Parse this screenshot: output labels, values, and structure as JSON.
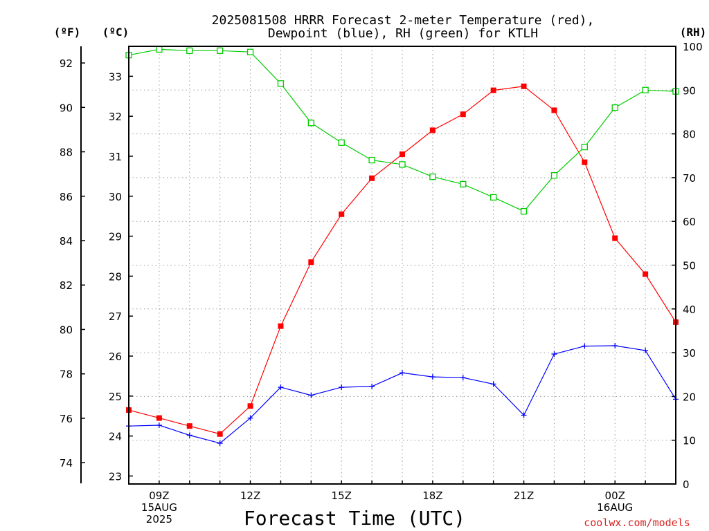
{
  "chart_data": {
    "type": "line",
    "title_line1": "2025081508 HRRR Forecast 2-meter Temperature (red),",
    "title_line2": "Dewpoint (blue), RH (green) for KTLH",
    "xlabel": "Forecast Time (UTC)",
    "credit": "coolwx.com/models",
    "axis_units": {
      "fahrenheit": "(ºF)",
      "celsius": "(ºC)",
      "rh": "(RH)"
    },
    "x": [
      8,
      9,
      10,
      11,
      12,
      13,
      14,
      15,
      16,
      17,
      18,
      19,
      20,
      21,
      22,
      23,
      24,
      25,
      26
    ],
    "x_ticks": [
      {
        "hour": 9,
        "lines": [
          "09Z",
          "15AUG",
          "2025"
        ]
      },
      {
        "hour": 12,
        "lines": [
          "12Z"
        ]
      },
      {
        "hour": 15,
        "lines": [
          "15Z"
        ]
      },
      {
        "hour": 18,
        "lines": [
          "18Z"
        ]
      },
      {
        "hour": 21,
        "lines": [
          "21Z"
        ]
      },
      {
        "hour": 24,
        "lines": [
          "00Z",
          "16AUG"
        ]
      }
    ],
    "xlim": [
      8,
      26
    ],
    "celsius_ticks": [
      "23",
      "24",
      "25",
      "26",
      "27",
      "28",
      "29",
      "30",
      "31",
      "32",
      "33"
    ],
    "celsius_lim": [
      22.8,
      33.75
    ],
    "fahrenheit_ticks": [
      "74",
      "76",
      "78",
      "80",
      "82",
      "84",
      "86",
      "88",
      "90",
      "92"
    ],
    "rh_ticks": [
      "0",
      "10",
      "20",
      "30",
      "40",
      "50",
      "60",
      "70",
      "80",
      "90",
      "100"
    ],
    "rh_lim": [
      0,
      100
    ],
    "series": [
      {
        "name": "Temperature",
        "color": "#ff0000",
        "marker": "filled-square",
        "axis": "celsius",
        "values": [
          24.65,
          24.45,
          24.25,
          24.05,
          24.75,
          26.75,
          28.35,
          29.55,
          30.45,
          31.05,
          31.65,
          32.05,
          32.65,
          32.75,
          32.15,
          30.85,
          28.95,
          28.05,
          26.85
        ]
      },
      {
        "name": "Dewpoint",
        "color": "#0000ff",
        "marker": "plus",
        "axis": "celsius",
        "values": [
          24.25,
          24.27,
          24.02,
          23.82,
          24.45,
          25.22,
          25.02,
          25.22,
          25.24,
          25.58,
          25.48,
          25.46,
          25.3,
          24.52,
          26.05,
          26.25,
          26.26,
          26.14,
          24.92
        ]
      },
      {
        "name": "RH",
        "color": "#00cc00",
        "marker": "open-square",
        "axis": "rh",
        "values": [
          98,
          99.3,
          99,
          99,
          98.7,
          91.5,
          82.5,
          78,
          74,
          73,
          70.2,
          68.5,
          65.5,
          62.3,
          70.5,
          77,
          86,
          90,
          89.7
        ]
      }
    ]
  }
}
